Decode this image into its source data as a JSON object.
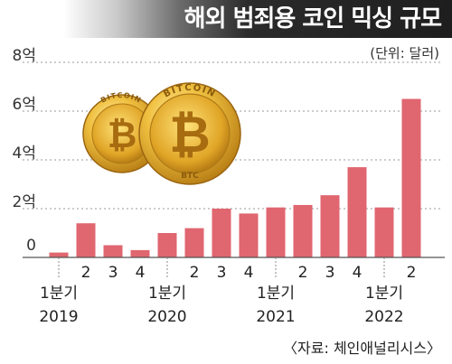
{
  "header": {
    "title": "해외 범죄용 코인 믹싱 규모"
  },
  "unit_label": "(단위: 달러)",
  "source": "〈자료: 체인애널리시스〉",
  "colors": {
    "bar": "#e06670",
    "header_dark": "#1e1e1e",
    "coin_gold": "#e0ae2c"
  },
  "illustration": {
    "icon": "bitcoin-coins-icon",
    "coin_text": "BITCOIN",
    "coin_sub": "BTC"
  },
  "chart_data": {
    "type": "bar",
    "title": "해외 범죄용 코인 믹싱 규모",
    "xlabel": "",
    "ylabel": "",
    "ylim": [
      0,
      8
    ],
    "yticks": [
      0,
      2,
      4,
      6,
      8
    ],
    "ytick_labels": [
      "0",
      "2억",
      "4억",
      "6억",
      "8억"
    ],
    "grid": true,
    "categories": [
      "1분기 2019",
      "2",
      "3",
      "4",
      "1분기 2020",
      "2",
      "3",
      "4",
      "1분기 2021",
      "2",
      "3",
      "4",
      "1분기 2022",
      "2"
    ],
    "tick_rows": [
      [
        "1분기",
        "2019"
      ],
      [
        "2",
        ""
      ],
      [
        "3",
        ""
      ],
      [
        "4",
        ""
      ],
      [
        "1분기",
        "2020"
      ],
      [
        "2",
        ""
      ],
      [
        "3",
        ""
      ],
      [
        "4",
        ""
      ],
      [
        "1분기",
        "2021"
      ],
      [
        "2",
        ""
      ],
      [
        "3",
        ""
      ],
      [
        "4",
        ""
      ],
      [
        "1분기",
        "2022"
      ],
      [
        "2",
        ""
      ]
    ],
    "values": [
      0.2,
      1.4,
      0.5,
      0.3,
      1.0,
      1.2,
      2.0,
      1.8,
      2.05,
      2.15,
      2.55,
      3.7,
      2.05,
      6.5
    ]
  }
}
